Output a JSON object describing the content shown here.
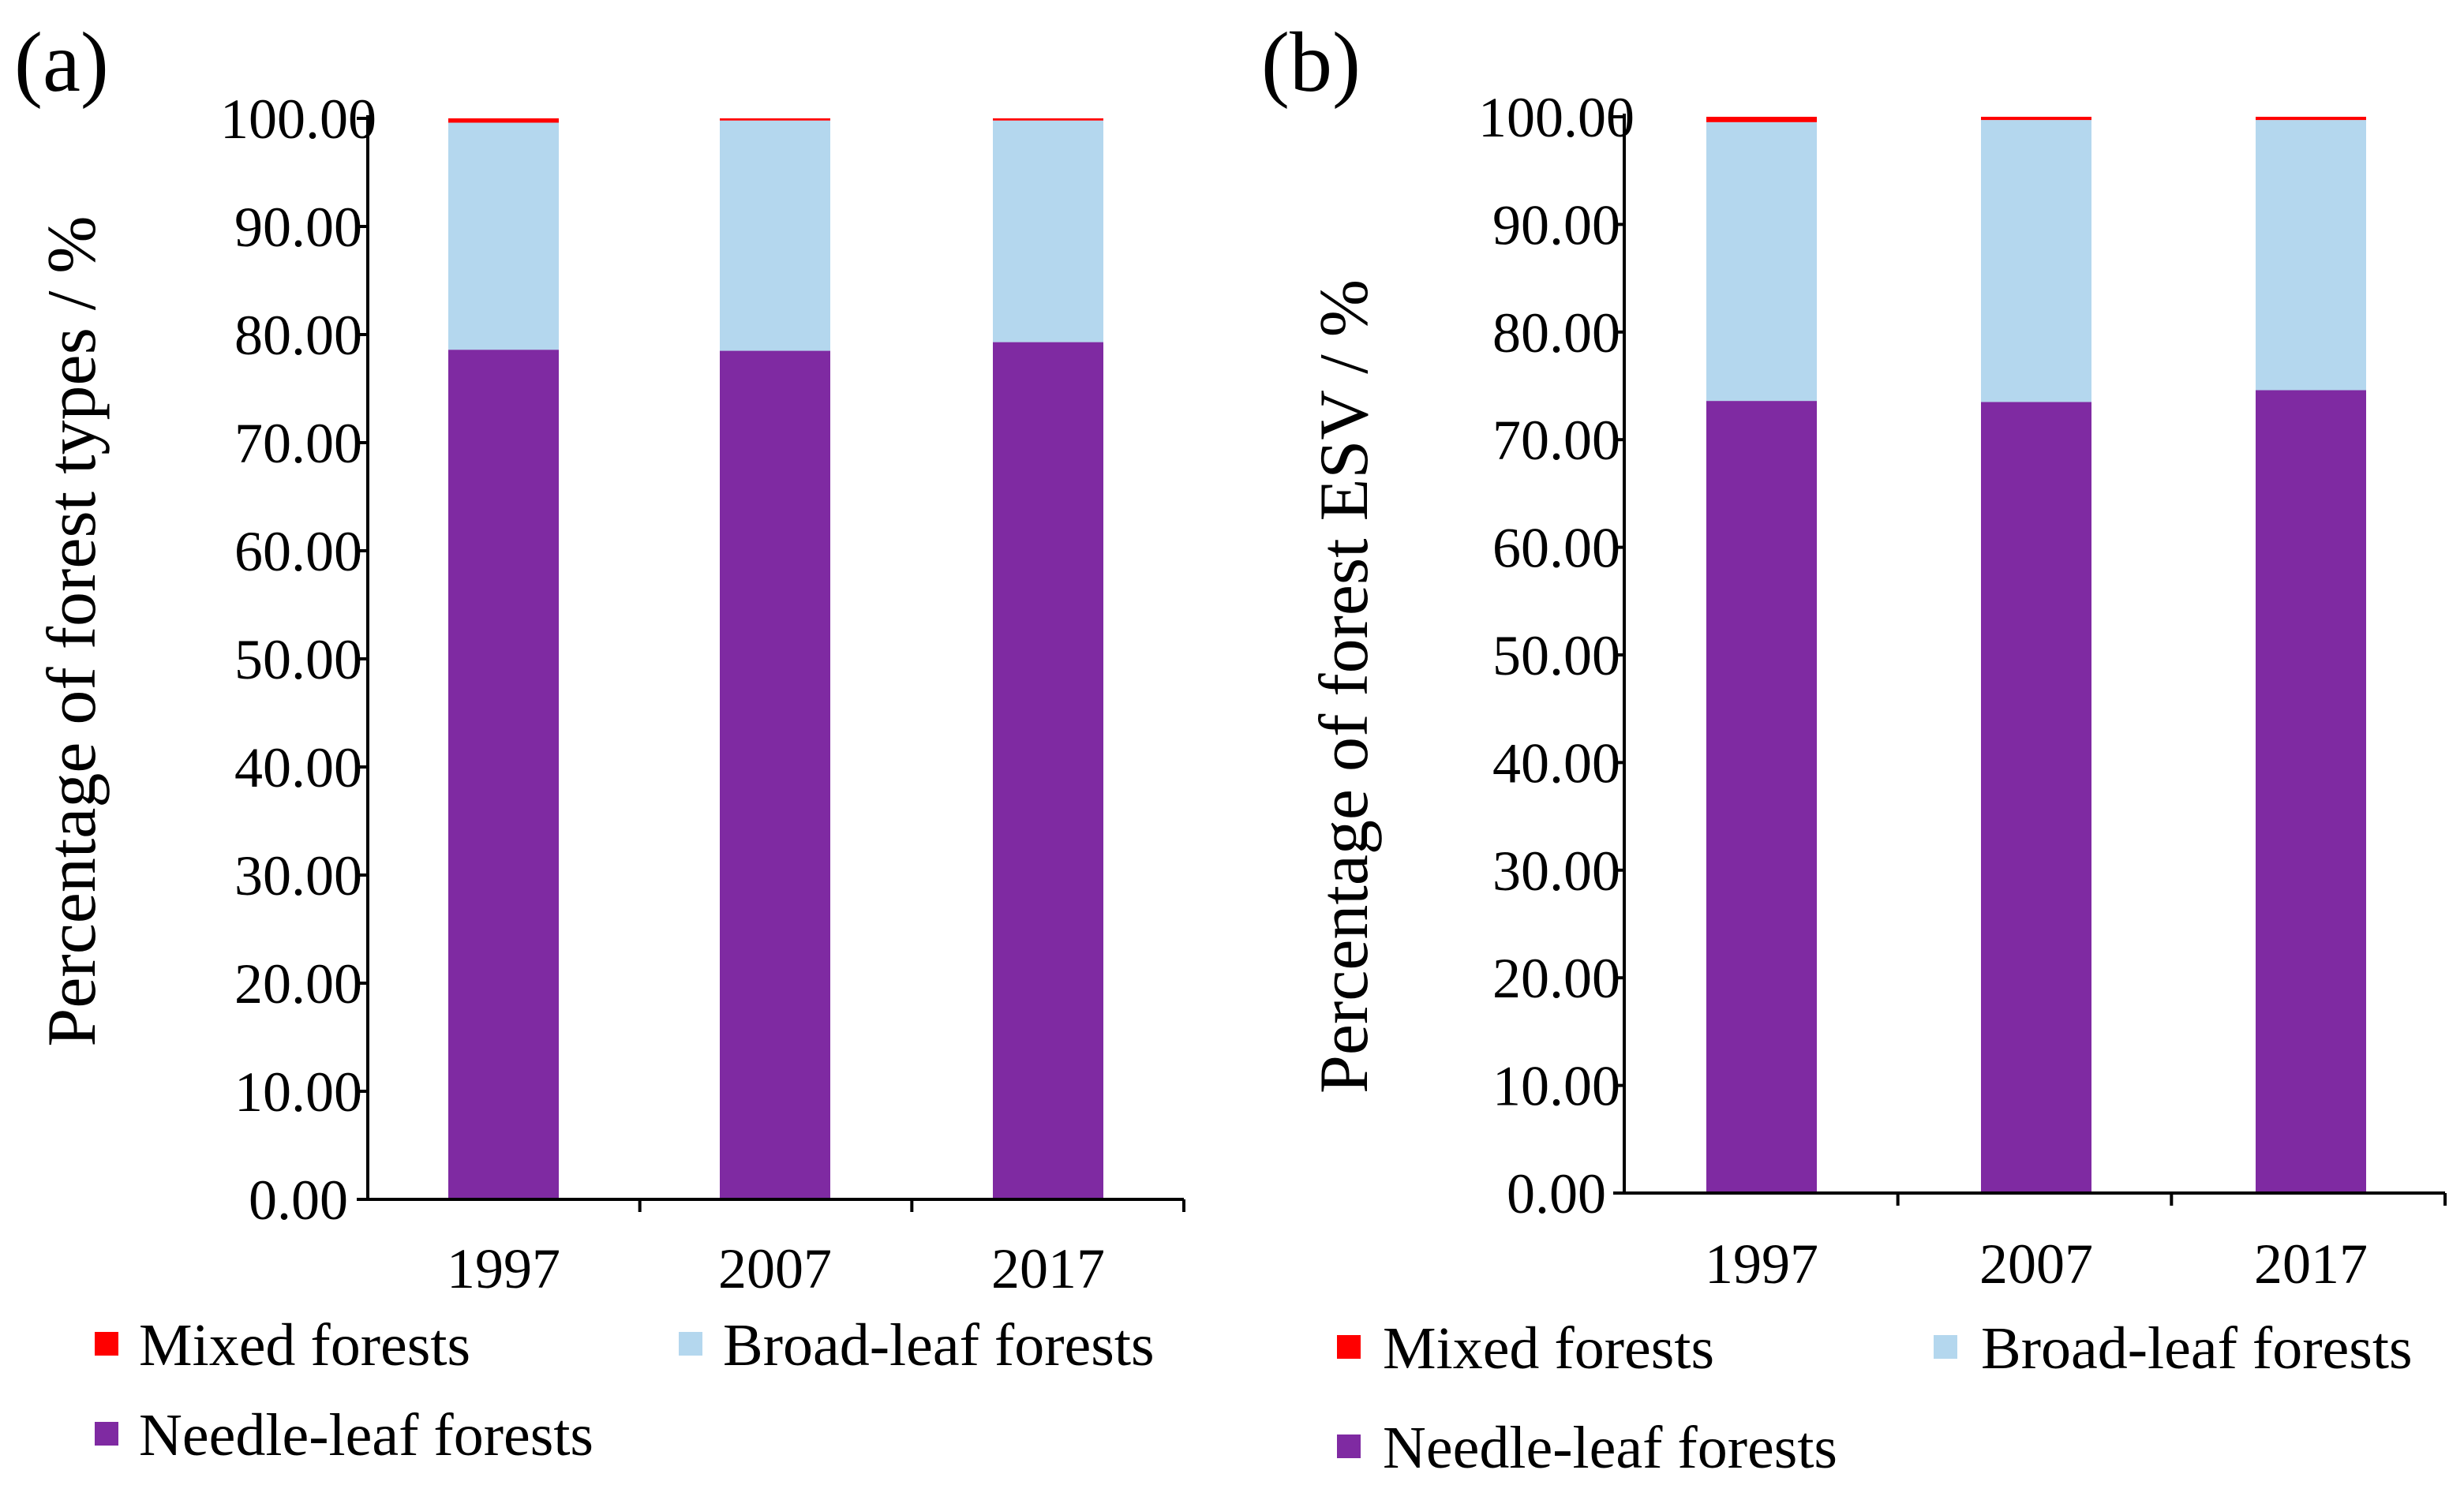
{
  "figure": {
    "description_labels": [
      "(a)",
      "(b)"
    ]
  },
  "colors": {
    "mixed": "#ff0000",
    "broad": "#b4d7ee",
    "needle": "#7f2aa2",
    "axis": "#000000"
  },
  "chart_data": [
    {
      "type": "bar",
      "stacked": true,
      "panel_label": "(a)",
      "title": "",
      "xlabel": "",
      "ylabel": "Percentage of forest types / %",
      "ylim": [
        0,
        100
      ],
      "yticks": [
        "0.00",
        "10.00",
        "20.00",
        "30.00",
        "40.00",
        "50.00",
        "60.00",
        "70.00",
        "80.00",
        "90.00",
        "100.00"
      ],
      "categories": [
        "1997",
        "2007",
        "2017"
      ],
      "series": [
        {
          "name": "Needle-leaf forests",
          "key": "needle",
          "values": [
            78.6,
            78.5,
            79.3
          ]
        },
        {
          "name": "Broad-leaf forests",
          "key": "broad",
          "values": [
            21.0,
            21.3,
            20.5
          ]
        },
        {
          "name": "Mixed forests",
          "key": "mixed",
          "values": [
            0.4,
            0.2,
            0.2
          ]
        }
      ],
      "legend": [
        "Mixed forests",
        "Broad-leaf forests",
        "Needle-leaf forests"
      ]
    },
    {
      "type": "bar",
      "stacked": true,
      "panel_label": "(b)",
      "title": "",
      "xlabel": "",
      "ylabel": "Percentage of forest ESV / %",
      "ylim": [
        0,
        100
      ],
      "yticks": [
        "0.00",
        "10.00",
        "20.00",
        "30.00",
        "40.00",
        "50.00",
        "60.00",
        "70.00",
        "80.00",
        "90.00",
        "100.00"
      ],
      "categories": [
        "1997",
        "2007",
        "2017"
      ],
      "series": [
        {
          "name": "Needle-leaf forests",
          "key": "needle",
          "values": [
            73.6,
            73.5,
            74.6
          ]
        },
        {
          "name": "Broad-leaf forests",
          "key": "broad",
          "values": [
            25.9,
            26.2,
            25.1
          ]
        },
        {
          "name": "Mixed forests",
          "key": "mixed",
          "values": [
            0.5,
            0.3,
            0.3
          ]
        }
      ],
      "legend": [
        "Mixed forests",
        "Broad-leaf forests",
        "Needle-leaf forests"
      ]
    }
  ]
}
